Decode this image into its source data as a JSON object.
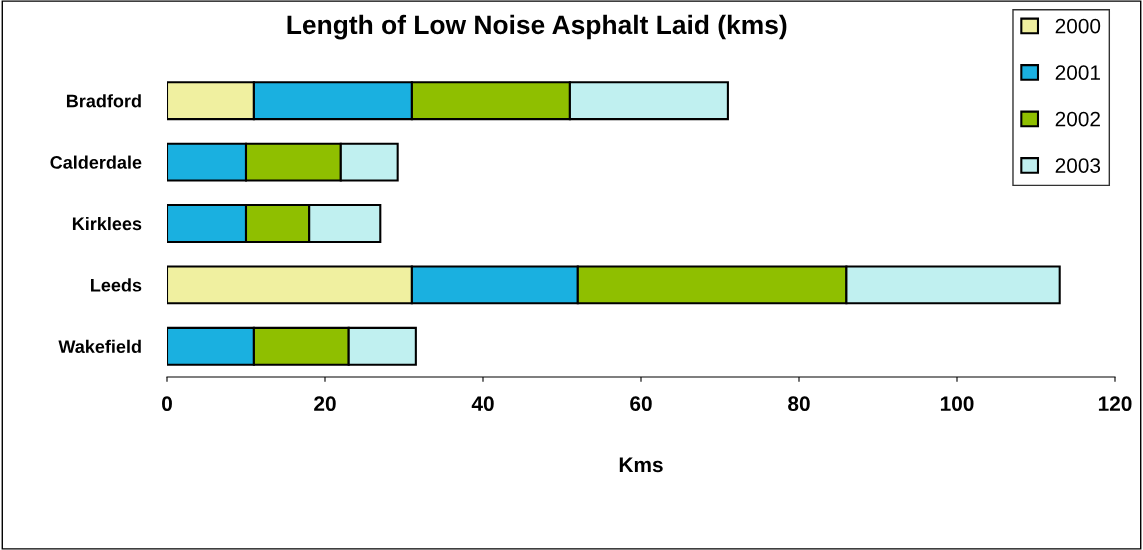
{
  "chart_data": {
    "type": "bar",
    "orientation": "horizontal",
    "stacked": true,
    "title": "Length of Low Noise Asphalt Laid (kms)",
    "xlabel": "Kms",
    "categories": [
      "Bradford",
      "Calderdale",
      "Kirklees",
      "Leeds",
      "Wakefield"
    ],
    "series": [
      {
        "name": "2000",
        "color": "#f0f0a0",
        "values": [
          11,
          null,
          null,
          31,
          null
        ]
      },
      {
        "name": "2001",
        "color": "#1ab0e0",
        "values": [
          20,
          10,
          10,
          21,
          11
        ]
      },
      {
        "name": "2002",
        "color": "#8fbf00",
        "values": [
          20,
          12,
          8,
          34,
          12
        ]
      },
      {
        "name": "2003",
        "color": "#c0f0f0",
        "values": [
          20,
          7.2,
          9,
          27,
          8.5
        ]
      }
    ],
    "xlim": [
      0,
      120
    ],
    "xticks": [
      0,
      20,
      40,
      60,
      80,
      100,
      120
    ],
    "grid": false,
    "legend": "top right"
  }
}
